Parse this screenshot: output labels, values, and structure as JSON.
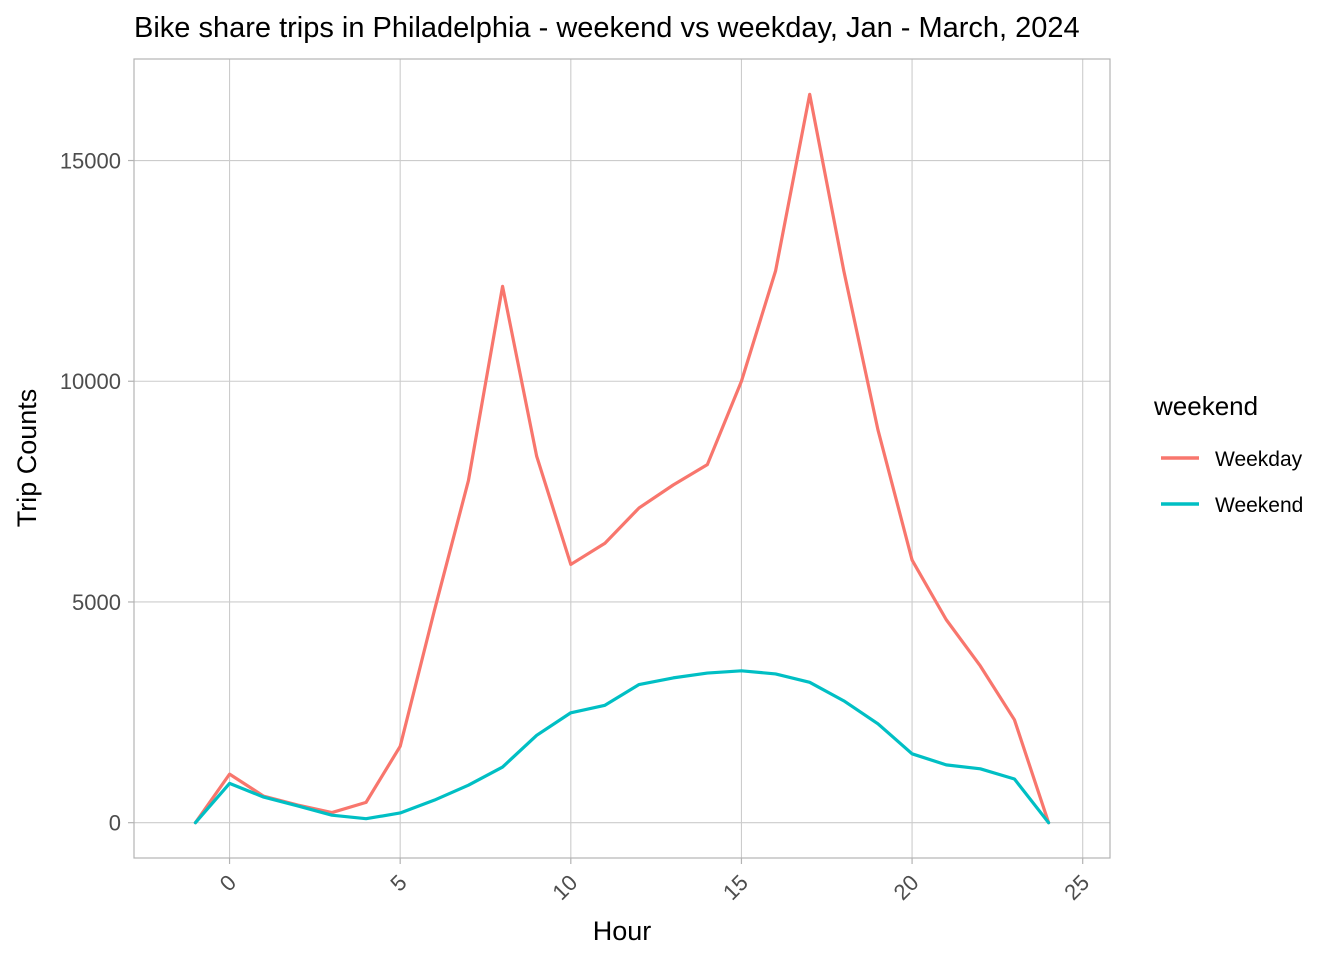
{
  "chart_data": {
    "type": "line",
    "title": "Bike share trips in Philadelphia - weekend vs weekday, Jan - March, 2024",
    "xlabel": "Hour",
    "ylabel": "Trip Counts",
    "xlim": [
      -2.8,
      25.8
    ],
    "ylim": [
      -800,
      17300
    ],
    "x_ticks": [
      0,
      5,
      10,
      15,
      20,
      25
    ],
    "x_tick_labels": [
      "0",
      "5",
      "10",
      "15",
      "20",
      "25"
    ],
    "y_ticks": [
      0,
      5000,
      10000,
      15000
    ],
    "y_tick_labels": [
      "0",
      "5000",
      "10000",
      "15000"
    ],
    "grid": true,
    "legend": {
      "title": "weekend",
      "position": "right"
    },
    "x": [
      -1,
      0,
      1,
      2,
      3,
      4,
      5,
      6,
      7,
      8,
      9,
      10,
      11,
      12,
      13,
      14,
      15,
      16,
      17,
      18,
      19,
      20,
      21,
      22,
      23,
      24
    ],
    "series": [
      {
        "name": "Weekday",
        "color": "#F8766D",
        "values": [
          0,
          1100,
          600,
          400,
          230,
          460,
          1730,
          4800,
          7750,
          12150,
          8300,
          5850,
          6330,
          7130,
          7650,
          8110,
          10000,
          12500,
          16500,
          12500,
          8900,
          5950,
          4600,
          3550,
          2330,
          0
        ]
      },
      {
        "name": "Weekend",
        "color": "#00BFC4",
        "values": [
          0,
          890,
          580,
          380,
          170,
          90,
          220,
          510,
          850,
          1260,
          1980,
          2490,
          2660,
          3130,
          3280,
          3390,
          3440,
          3370,
          3180,
          2760,
          2240,
          1560,
          1310,
          1220,
          990,
          0
        ]
      }
    ]
  }
}
